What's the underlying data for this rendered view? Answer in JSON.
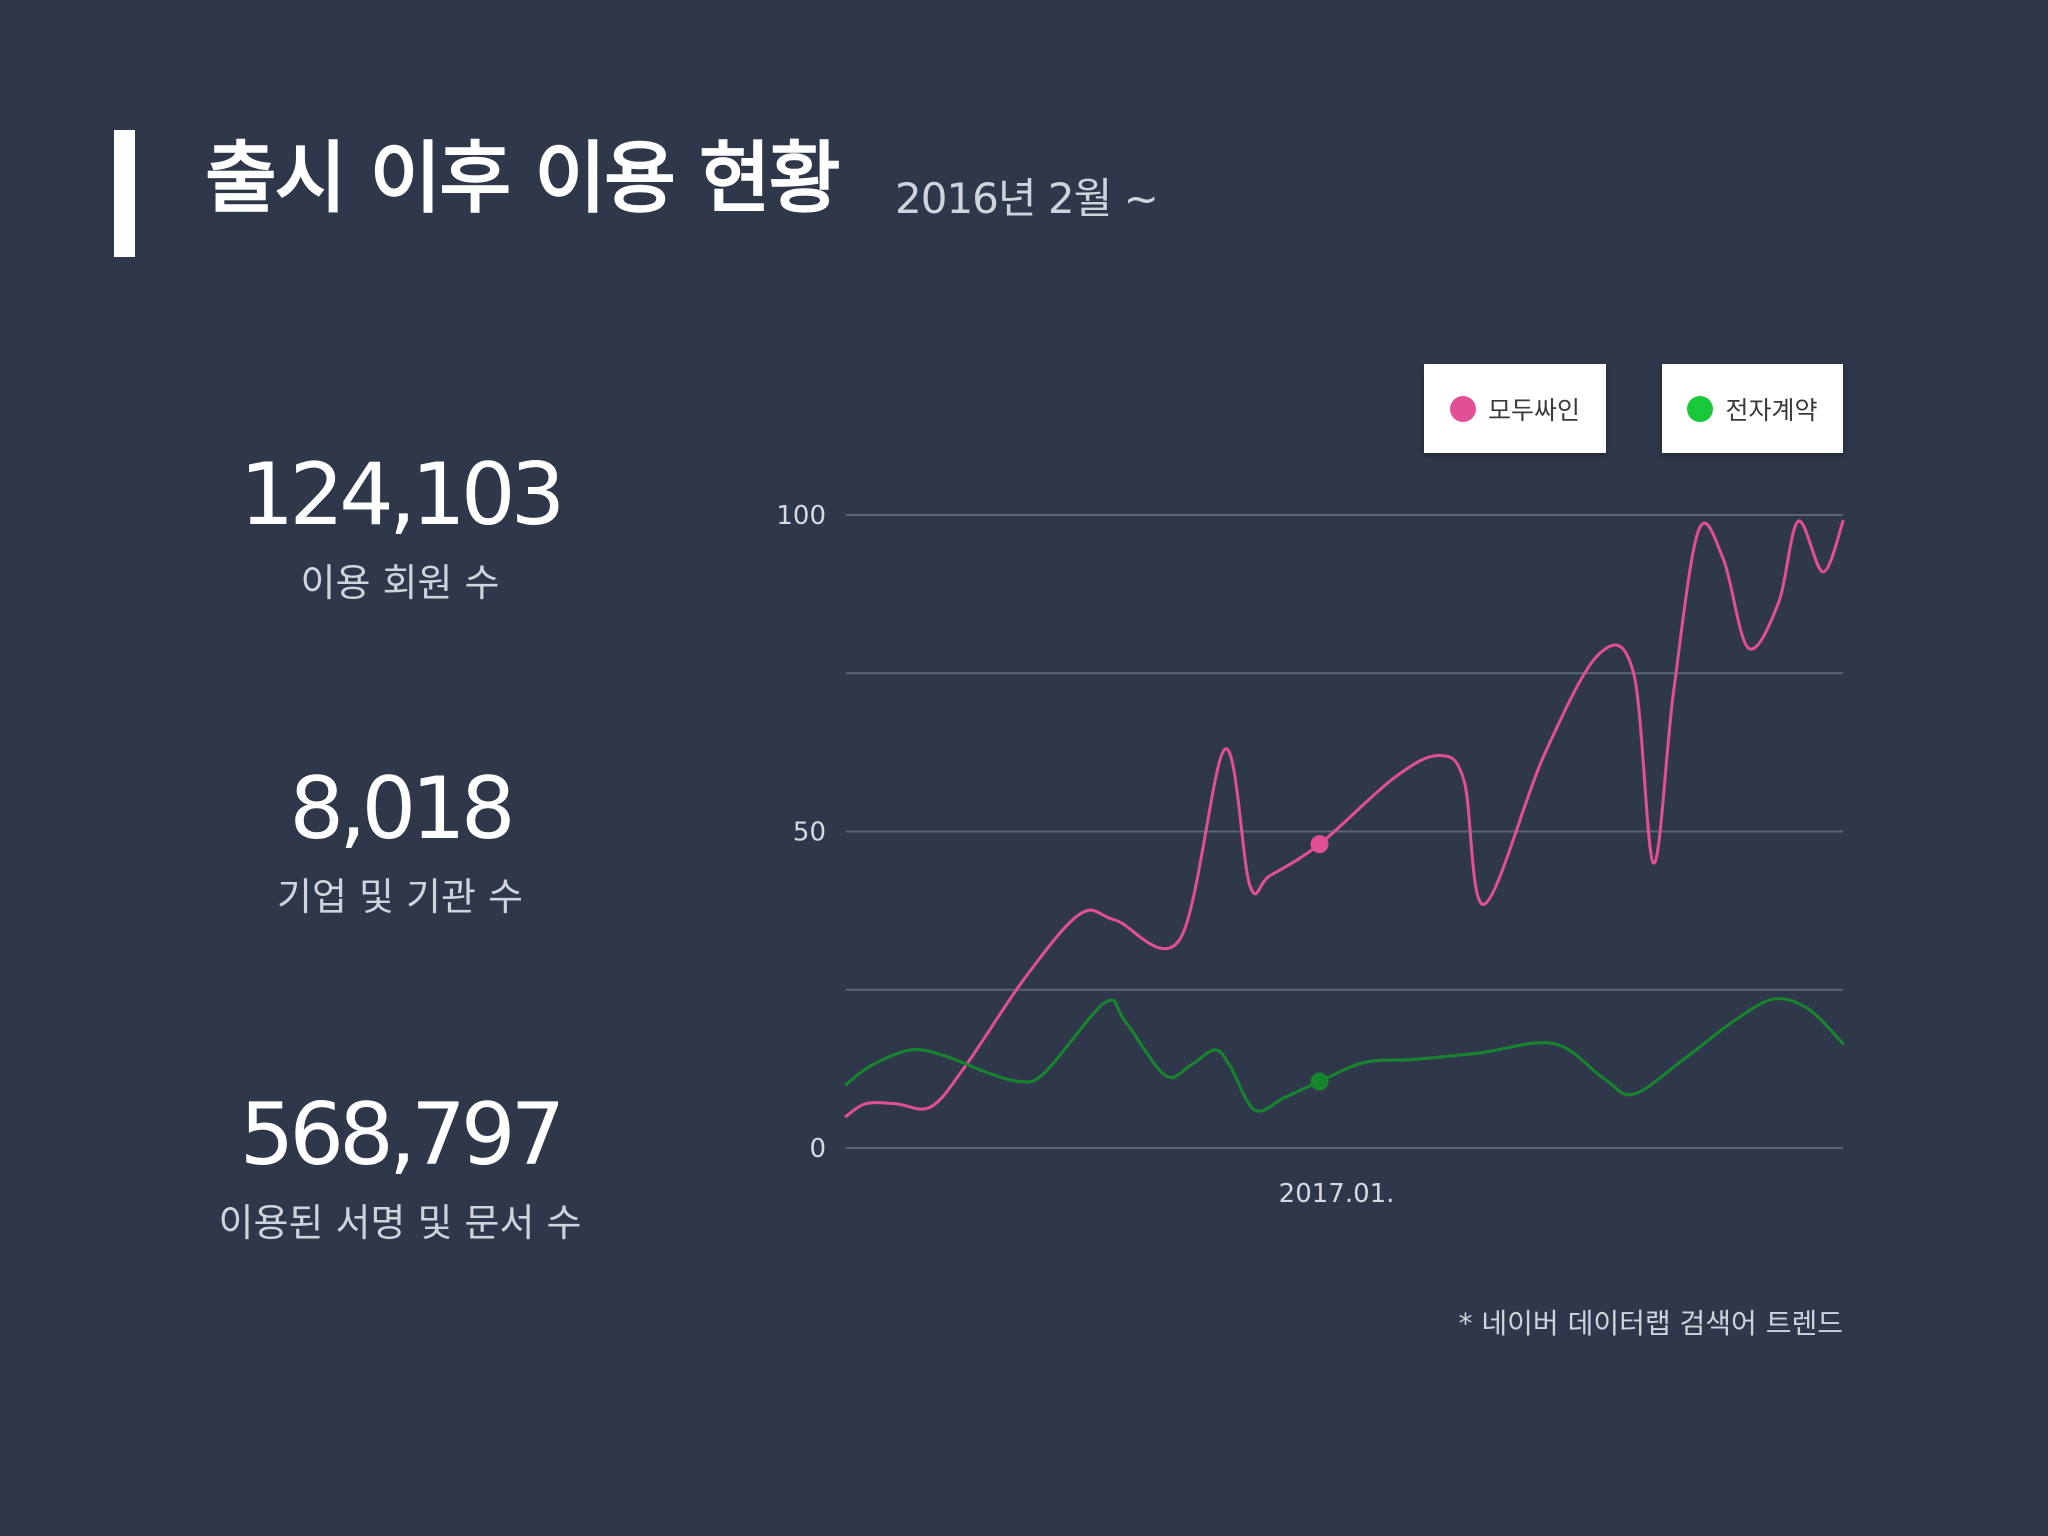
{
  "header": {
    "title": "출시 이후 이용 현황",
    "subtitle": "2016년 2월 ~"
  },
  "stats": [
    {
      "value": "124,103",
      "label": "이용 회원 수"
    },
    {
      "value": "8,018",
      "label": "기업 및 기관 수"
    },
    {
      "value": "568,797",
      "label": "이용된 서명 및 문서 수"
    }
  ],
  "chart_data": {
    "type": "line",
    "x_tick_labels": [
      {
        "label": "2017.01.",
        "x": 0.48
      }
    ],
    "y_tick_labels": [
      "0",
      "50",
      "100"
    ],
    "ylim": [
      0,
      100
    ],
    "xlim": [
      0,
      1
    ],
    "gridlines_y": [
      0,
      25,
      50,
      75,
      100
    ],
    "legend_position": "top-right",
    "series": [
      {
        "name": "모두싸인",
        "color": "#e24f96",
        "points": [
          [
            0.0,
            5
          ],
          [
            0.02,
            7
          ],
          [
            0.05,
            7
          ],
          [
            0.085,
            6.5
          ],
          [
            0.12,
            13
          ],
          [
            0.18,
            27
          ],
          [
            0.235,
            37
          ],
          [
            0.27,
            36
          ],
          [
            0.335,
            33
          ],
          [
            0.38,
            63
          ],
          [
            0.405,
            41.5
          ],
          [
            0.425,
            43
          ],
          [
            0.475,
            48
          ],
          [
            0.55,
            58.5
          ],
          [
            0.595,
            62
          ],
          [
            0.62,
            58
          ],
          [
            0.64,
            38.5
          ],
          [
            0.7,
            62
          ],
          [
            0.755,
            78
          ],
          [
            0.79,
            75
          ],
          [
            0.81,
            45
          ],
          [
            0.83,
            72
          ],
          [
            0.855,
            97.5
          ],
          [
            0.88,
            93
          ],
          [
            0.905,
            79
          ],
          [
            0.935,
            86
          ],
          [
            0.955,
            99
          ],
          [
            0.98,
            91
          ],
          [
            1.0,
            99
          ]
        ],
        "marker": [
          0.475,
          48
        ]
      },
      {
        "name": "전자계약",
        "color": "#17852e",
        "points": [
          [
            0.0,
            10
          ],
          [
            0.025,
            13
          ],
          [
            0.065,
            15.5
          ],
          [
            0.1,
            14.5
          ],
          [
            0.14,
            12
          ],
          [
            0.175,
            10.5
          ],
          [
            0.2,
            12
          ],
          [
            0.26,
            23
          ],
          [
            0.28,
            20
          ],
          [
            0.32,
            11.5
          ],
          [
            0.345,
            13
          ],
          [
            0.37,
            15.5
          ],
          [
            0.385,
            13
          ],
          [
            0.41,
            6
          ],
          [
            0.44,
            8
          ],
          [
            0.475,
            10.5
          ],
          [
            0.52,
            13.5
          ],
          [
            0.57,
            14
          ],
          [
            0.635,
            15
          ],
          [
            0.71,
            16.5
          ],
          [
            0.76,
            11
          ],
          [
            0.79,
            8.5
          ],
          [
            0.84,
            14
          ],
          [
            0.89,
            20
          ],
          [
            0.93,
            23.5
          ],
          [
            0.965,
            22
          ],
          [
            1.0,
            16.5
          ]
        ],
        "marker": [
          0.475,
          10.5
        ]
      }
    ]
  },
  "footnote": "* 네이버 데이터랩 검색어 트렌드"
}
